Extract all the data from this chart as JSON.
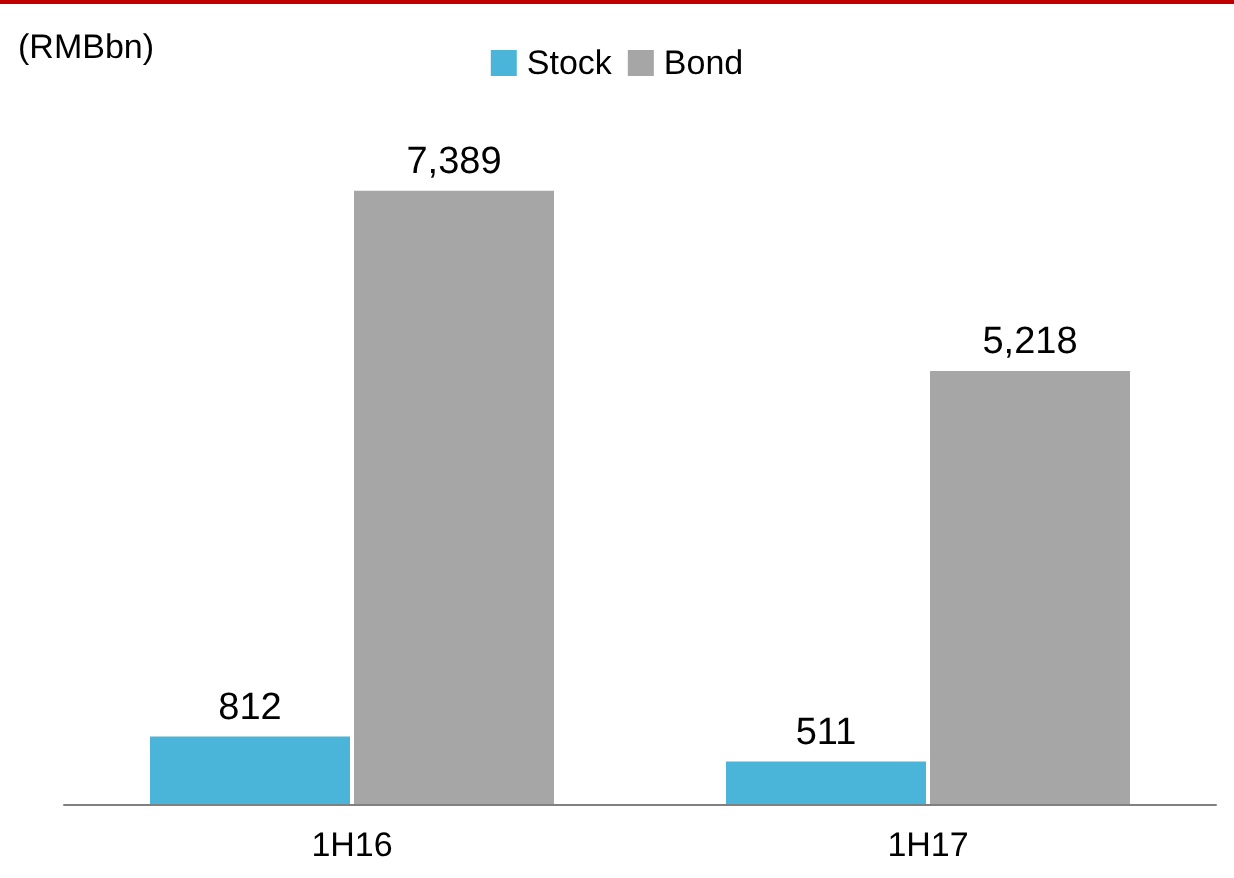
{
  "chart_data": {
    "type": "bar",
    "ylabel": "(RMBbn)",
    "categories": [
      "1H16",
      "1H17"
    ],
    "series": [
      {
        "name": "Stock",
        "color": "#4bb4d9",
        "values": [
          812,
          511
        ],
        "value_labels": [
          "812",
          "511"
        ]
      },
      {
        "name": "Bond",
        "color": "#a6a6a6",
        "values": [
          7389,
          5218
        ],
        "value_labels": [
          "7,389",
          "5,218"
        ]
      }
    ],
    "legend": "top",
    "grid": false
  }
}
